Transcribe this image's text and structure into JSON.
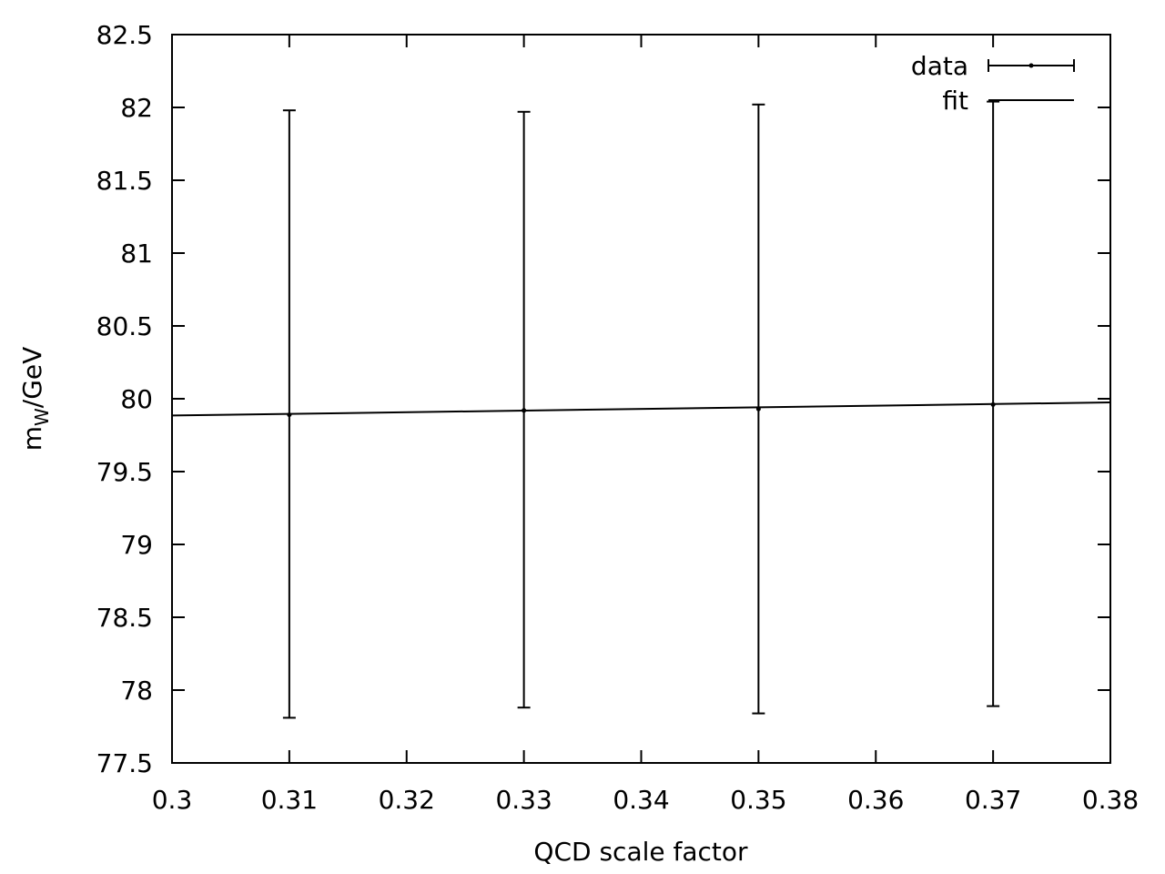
{
  "chart_data": {
    "type": "scatter",
    "title": "",
    "xlabel": "QCD scale factor",
    "ylabel": {
      "prefix": "m",
      "subscript": "W",
      "suffix": "/GeV"
    },
    "xlim": [
      0.3,
      0.38
    ],
    "ylim": [
      77.5,
      82.5
    ],
    "x_ticks": [
      "0.3",
      "0.31",
      "0.32",
      "0.33",
      "0.34",
      "0.35",
      "0.36",
      "0.37",
      "0.38"
    ],
    "y_ticks": [
      "77.5",
      "78",
      "78.5",
      "79",
      "79.5",
      "80",
      "80.5",
      "81",
      "81.5",
      "82",
      "82.5"
    ],
    "grid": false,
    "legend_position": "top-right",
    "series": [
      {
        "name": "data",
        "kind": "errorbars",
        "points": [
          {
            "x": 0.31,
            "y": 79.89,
            "ylow": 77.81,
            "yhigh": 81.98
          },
          {
            "x": 0.33,
            "y": 79.92,
            "ylow": 77.88,
            "yhigh": 81.97
          },
          {
            "x": 0.35,
            "y": 79.93,
            "ylow": 77.84,
            "yhigh": 82.02
          },
          {
            "x": 0.37,
            "y": 79.96,
            "ylow": 77.89,
            "yhigh": 82.04
          }
        ]
      },
      {
        "name": "fit",
        "kind": "line",
        "points": [
          {
            "x": 0.3,
            "y": 79.885
          },
          {
            "x": 0.38,
            "y": 79.975
          }
        ]
      }
    ],
    "colors": {
      "foreground": "#000000",
      "background": "#ffffff"
    }
  }
}
